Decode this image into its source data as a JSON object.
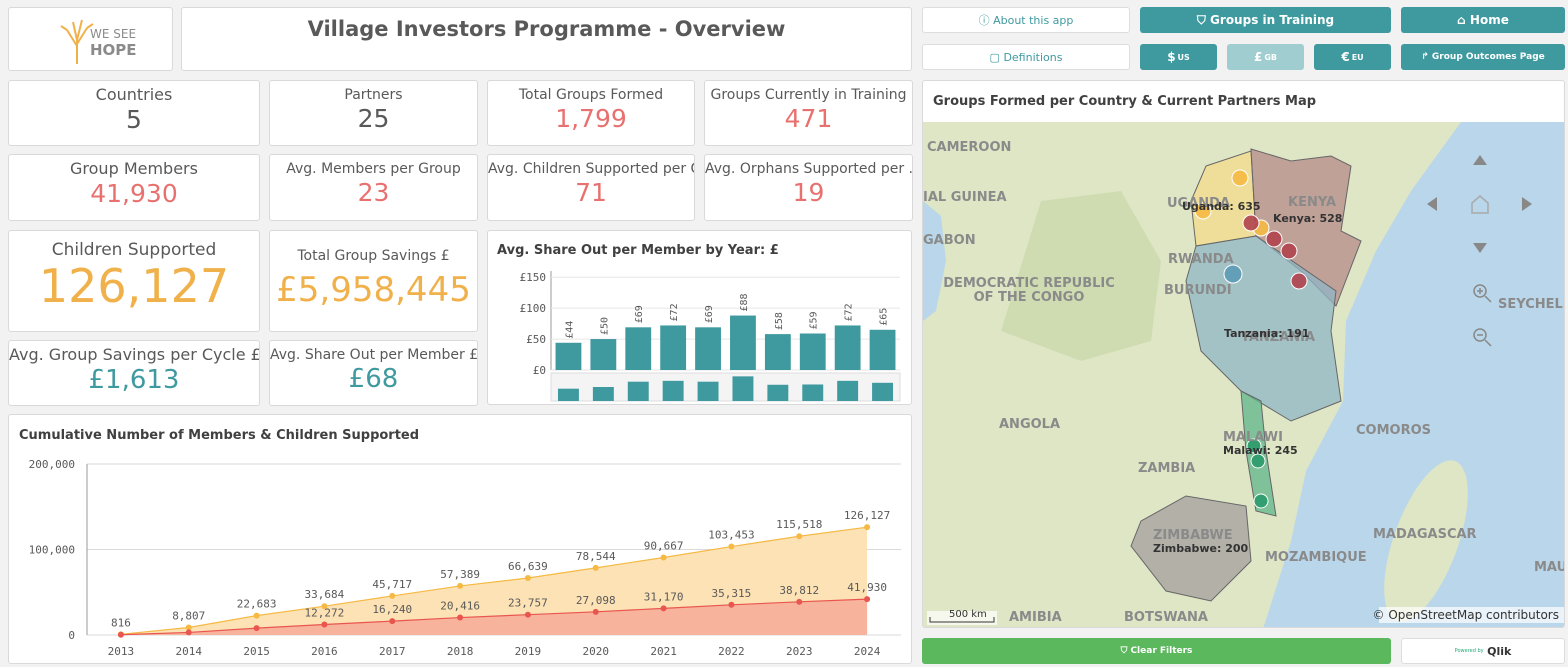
{
  "header": {
    "logo_top": "WE SEE",
    "logo_bottom": "HOPE",
    "title": "Village Investors Programme - Overview"
  },
  "nav": {
    "about": "About this app",
    "groups_in_training": "Groups in Training",
    "home": "Home",
    "definitions": "Definitions",
    "usd": "$",
    "usd_code": "US",
    "gbp": "£",
    "gbp_code": "GB",
    "eur": "€",
    "eur_code": "EU",
    "outcomes": "Group Outcomes Page"
  },
  "kpis": [
    {
      "label": "Countries",
      "value": "5"
    },
    {
      "label": "Partners",
      "value": "25"
    },
    {
      "label": "Total Groups Formed",
      "value": "1,799"
    },
    {
      "label": "Groups Currently in Training",
      "value": "471"
    },
    {
      "label": "Group Members",
      "value": "41,930"
    },
    {
      "label": "Avg. Members per Group",
      "value": "23"
    },
    {
      "label": "Avg. Children Supported per G...",
      "value": "71"
    },
    {
      "label": "Avg. Orphans Supported per ...",
      "value": "19"
    },
    {
      "label": "Children Supported",
      "value": "126,127"
    },
    {
      "label": "Total Group Savings £",
      "value": "£5,958,445"
    },
    {
      "label": "Avg. Group Savings per Cycle £",
      "value": "£1,613"
    },
    {
      "label": "Avg. Share Out per Member £",
      "value": "£68"
    }
  ],
  "chart_data": [
    {
      "type": "bar",
      "title": "Avg. Share Out per Member by Year: £",
      "values": [
        44,
        50,
        69,
        72,
        69,
        88,
        58,
        59,
        72,
        65
      ],
      "value_labels": [
        "£44",
        "£50",
        "£69",
        "£72",
        "£69",
        "£88",
        "£58",
        "£59",
        "£72",
        "£65"
      ],
      "color": "#3f9aa0",
      "ylim": [
        0,
        160
      ],
      "yticks": [
        {
          "value": 0,
          "label": "£0"
        },
        {
          "value": 50,
          "label": "£50"
        },
        {
          "value": 100,
          "label": "£100"
        },
        {
          "value": 150,
          "label": "£150"
        }
      ],
      "grid": true
    },
    {
      "type": "line",
      "title": "Cumulative Number of Members & Children Supported",
      "x": [
        2013,
        2014,
        2015,
        2016,
        2017,
        2018,
        2019,
        2020,
        2021,
        2022,
        2023,
        2024
      ],
      "xlim": [
        2012.5,
        2024.5
      ],
      "series": [
        {
          "color": "#f5b944",
          "fill": "#fde2b5",
          "values": [
            816,
            8807,
            22683,
            33684,
            45717,
            57389,
            66639,
            78544,
            90667,
            103453,
            115518,
            126127
          ],
          "value_labels": [
            "816",
            "8,807",
            "22,683",
            "33,684",
            "45,717",
            "57,389",
            "66,639",
            "78,544",
            "90,667",
            "103,453",
            "115,518",
            "126,127"
          ]
        },
        {
          "color": "#e8564f",
          "fill": "#f8b39c",
          "values": [
            300,
            3000,
            8000,
            12272,
            16240,
            20416,
            23757,
            27098,
            31170,
            35315,
            38812,
            41930
          ],
          "value_labels": [
            null,
            null,
            null,
            "12,272",
            "16,240",
            "20,416",
            "23,757",
            "27,098",
            "31,170",
            "35,315",
            "38,812",
            "41,930"
          ]
        }
      ],
      "ylim": [
        0,
        200000
      ],
      "yticks": [
        0,
        {
          "value": 100000,
          "label": "100,000"
        },
        {
          "value": 200000,
          "label": "200,000"
        }
      ],
      "grid": true
    }
  ],
  "map": {
    "title": "Groups Formed per Country & Current Partners Map",
    "labels": [
      "CAMEROON",
      "IAL GUINEA",
      "GABON",
      "DEMOCRATIC REPUBLIC",
      "OF THE CONGO",
      "RWANDA",
      "BURUNDI",
      "UGANDA",
      "KENYA",
      "TANZANIA",
      "ANGOLA",
      "ZAMBIA",
      "MALAWI",
      "COMOROS",
      "ZIMBABWE",
      "MOZAMBIQUE",
      "MADAGASCAR",
      "AMIBIA",
      "BOTSWANA",
      "SEYCHELL",
      "MAU"
    ],
    "data_labels": [
      "Uganda: 635",
      "Kenya: 528",
      "Tanzania: 191",
      "Malawi: 245",
      "Zimbabwe: 200"
    ],
    "scale": "500 km",
    "attribution": "© OpenStreetMap contributors"
  },
  "footer": {
    "clear": "Clear Filters",
    "powered": "Powered by",
    "brand": "Qlik"
  }
}
